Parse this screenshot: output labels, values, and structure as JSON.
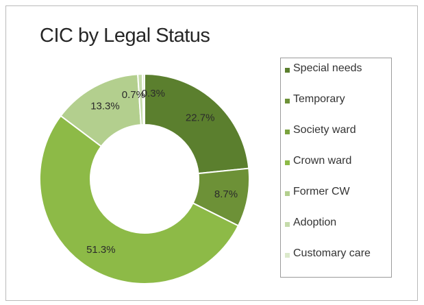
{
  "chart_data": {
    "type": "pie",
    "title": "CIC by Legal Status",
    "donut": true,
    "legend_position": "right",
    "categories": [
      "Special needs",
      "Temporary",
      "Society ward",
      "Crown ward",
      "Former CW",
      "Adoption",
      "Customary care"
    ],
    "values": [
      22.7,
      8.7,
      0,
      51.3,
      13.3,
      0.7,
      0.3
    ],
    "data_labels": [
      "22.7%",
      "8.7%",
      "",
      "51.3%",
      "13.3%",
      "0.7%",
      "0.3%"
    ],
    "colors": [
      "#5b7f2e",
      "#6d9137",
      "#7aa23d",
      "#8dba47",
      "#b3cf8e",
      "#c5dbab",
      "#dbe9cb"
    ]
  }
}
